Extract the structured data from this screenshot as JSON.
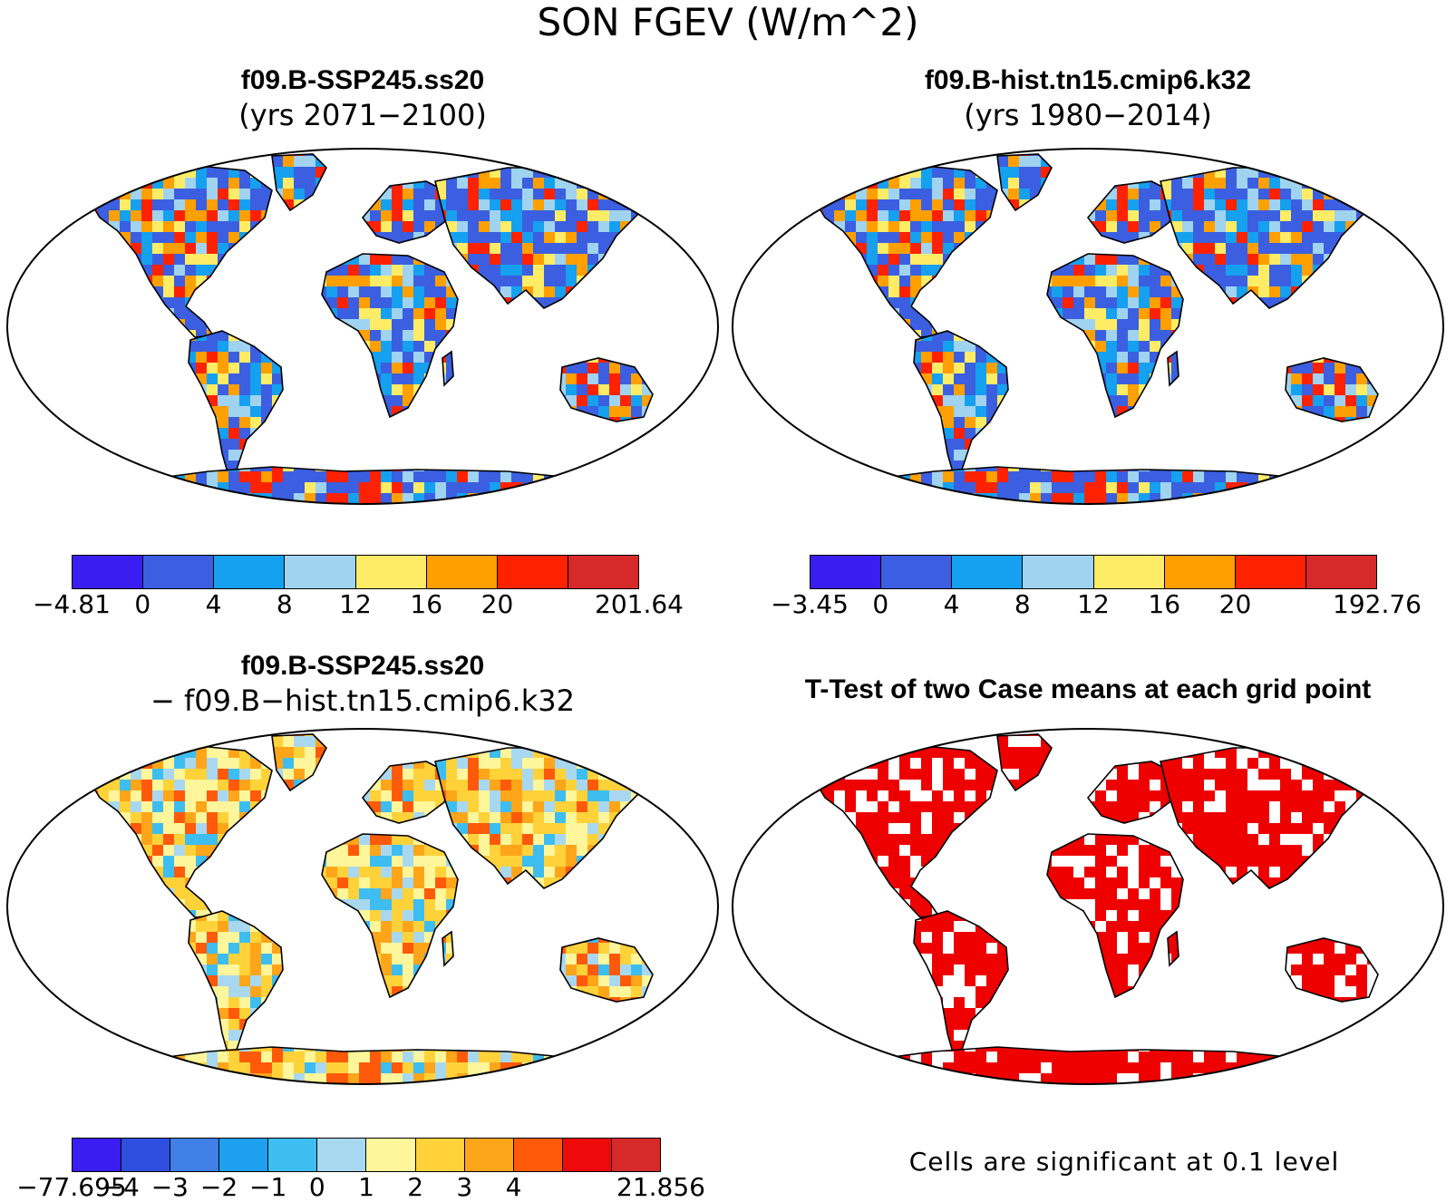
{
  "title": "SON FGEV (W/m^2)",
  "panels": [
    {
      "id": "case1",
      "title": "f09.B-SSP245.ss20",
      "subtitle": "(yrs 2071−2100)",
      "colorbar": {
        "colors": [
          "#3a1df0",
          "#3b5fe0",
          "#15a0f0",
          "#9fd3f0",
          "#ffec66",
          "#ff9f00",
          "#ff2200",
          "#d62a2a"
        ],
        "labels": [
          "−4.81",
          "0",
          "4",
          "8",
          "12",
          "16",
          "20",
          "201.64"
        ]
      }
    },
    {
      "id": "case2",
      "title": "f09.B-hist.tn15.cmip6.k32",
      "subtitle": "(yrs 1980−2014)",
      "colorbar": {
        "colors": [
          "#3a1df0",
          "#3b5fe0",
          "#15a0f0",
          "#9fd3f0",
          "#ffec66",
          "#ff9f00",
          "#ff2200",
          "#d62a2a"
        ],
        "labels": [
          "−3.45",
          "0",
          "4",
          "8",
          "12",
          "16",
          "20",
          "192.76"
        ]
      }
    },
    {
      "id": "diff",
      "title": "f09.B-SSP245.ss20",
      "subtitle": "− f09.B−hist.tn15.cmip6.k32",
      "colorbar": {
        "colors": [
          "#3a1df0",
          "#2f4fe0",
          "#3f7fe6",
          "#1ea0f0",
          "#3dbdf0",
          "#a8d8f0",
          "#fff59a",
          "#ffd23a",
          "#ffa51a",
          "#ff5a0a",
          "#ee0a0a",
          "#d62a2a"
        ],
        "labels": [
          "−77.695",
          "−4",
          "−3",
          "−2",
          "−1",
          "0",
          "1",
          "2",
          "3",
          "4",
          "21.856"
        ]
      }
    },
    {
      "id": "ttest",
      "title": "T-Test of two Case means at each grid point",
      "note": "Cells are significant at 0.1 level",
      "fill_color": "#ee0000"
    }
  ]
}
